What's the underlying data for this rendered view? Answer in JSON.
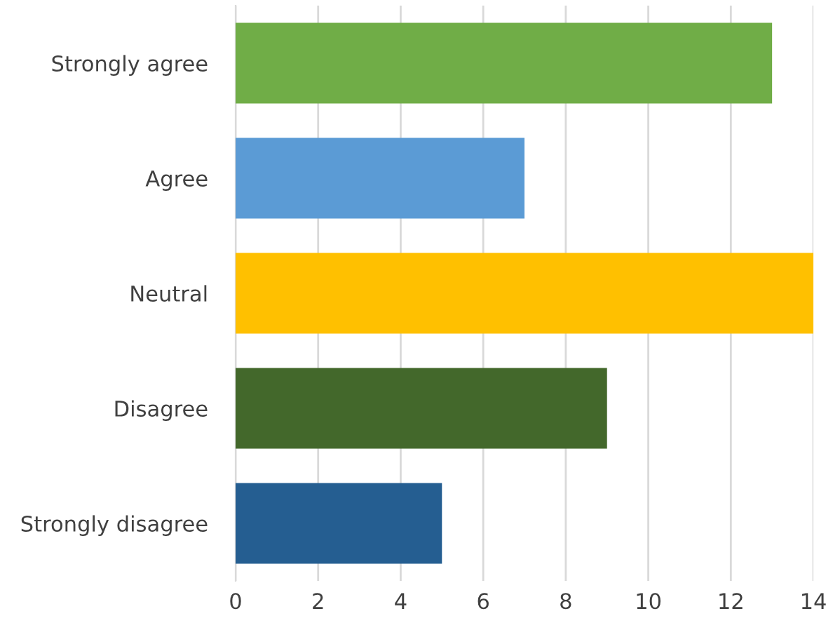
{
  "chart_data": {
    "type": "bar",
    "orientation": "horizontal",
    "categories": [
      "Strongly agree",
      "Agree",
      "Neutral",
      "Disagree",
      "Strongly disagree"
    ],
    "values": [
      13,
      7,
      14,
      9,
      5
    ],
    "colors": [
      "#70ad47",
      "#5b9bd5",
      "#ffc000",
      "#43682b",
      "#255e91"
    ],
    "xlim": [
      0,
      14
    ],
    "xticks": [
      0,
      2,
      4,
      6,
      8,
      10,
      12,
      14
    ],
    "grid": "x",
    "legend": false
  }
}
